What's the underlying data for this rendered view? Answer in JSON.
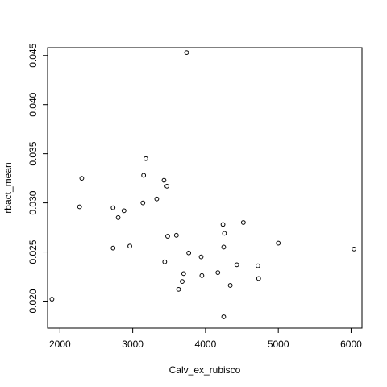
{
  "chart_data": {
    "type": "scatter",
    "title": "",
    "xlabel": "Calv_ex_rubisco",
    "ylabel": "rbact_mean",
    "xlim": [
      1830,
      6150
    ],
    "ylim": [
      0.01725,
      0.0458
    ],
    "x_ticks": [
      2000,
      3000,
      4000,
      5000,
      6000
    ],
    "y_ticks": [
      0.02,
      0.025,
      0.03,
      0.035,
      0.04,
      0.045
    ],
    "x_tick_labels": [
      "2000",
      "3000",
      "4000",
      "5000",
      "6000"
    ],
    "y_tick_labels": [
      "0.020",
      "0.025",
      "0.030",
      "0.035",
      "0.040",
      "0.045"
    ],
    "grid": false,
    "legend": "none",
    "series": [
      {
        "points": [
          [
            1890,
            0.0202
          ],
          [
            2270,
            0.0296
          ],
          [
            2300,
            0.0325
          ],
          [
            2730,
            0.0295
          ],
          [
            2730,
            0.0254
          ],
          [
            2800,
            0.0285
          ],
          [
            2880,
            0.0292
          ],
          [
            2960,
            0.0256
          ],
          [
            3140,
            0.03
          ],
          [
            3150,
            0.0328
          ],
          [
            3180,
            0.0345
          ],
          [
            3330,
            0.0304
          ],
          [
            3430,
            0.0323
          ],
          [
            3440,
            0.024
          ],
          [
            3470,
            0.0317
          ],
          [
            3480,
            0.0266
          ],
          [
            3600,
            0.0267
          ],
          [
            3630,
            0.0212
          ],
          [
            3680,
            0.022
          ],
          [
            3700,
            0.0228
          ],
          [
            3740,
            0.0453
          ],
          [
            3770,
            0.0249
          ],
          [
            3940,
            0.0245
          ],
          [
            3950,
            0.0226
          ],
          [
            4170,
            0.0229
          ],
          [
            4240,
            0.0278
          ],
          [
            4250,
            0.0184
          ],
          [
            4250,
            0.0255
          ],
          [
            4260,
            0.0269
          ],
          [
            4340,
            0.0216
          ],
          [
            4430,
            0.0237
          ],
          [
            4520,
            0.028
          ],
          [
            4720,
            0.0236
          ],
          [
            4730,
            0.0223
          ],
          [
            5000,
            0.0259
          ],
          [
            6040,
            0.0253
          ]
        ]
      }
    ]
  }
}
